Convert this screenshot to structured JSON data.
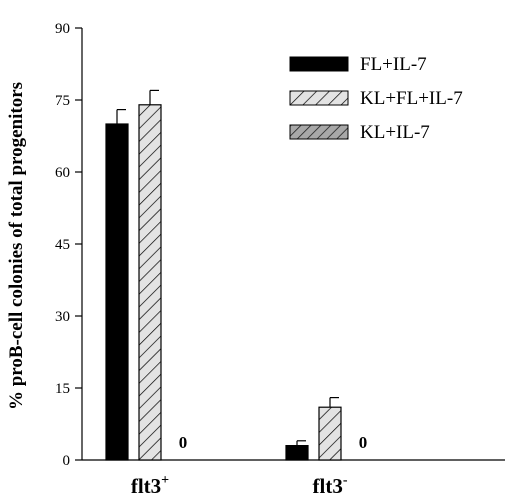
{
  "chart_data": {
    "type": "bar",
    "title": "",
    "ylabel": "% proB-cell colonies of total progenitors",
    "xlabel": "",
    "ylim": [
      0,
      90
    ],
    "yticks": [
      0,
      15,
      30,
      45,
      60,
      75,
      90
    ],
    "categories": [
      {
        "base": "flt3",
        "sup": "+"
      },
      {
        "base": "flt3",
        "sup": "-"
      }
    ],
    "series": [
      {
        "name": "FL+IL-7",
        "pattern": "solid",
        "color": "#000000",
        "values": [
          70,
          3
        ],
        "errors": [
          3,
          1
        ]
      },
      {
        "name": "KL+FL+IL-7",
        "pattern": "light-hatch",
        "color": "#d9d9d9",
        "values": [
          74,
          11
        ],
        "errors": [
          3,
          2
        ]
      },
      {
        "name": "KL+IL-7",
        "pattern": "dark-hatch",
        "color": "#9a9a9a",
        "values": [
          0,
          0
        ],
        "errors": [
          0,
          0
        ]
      }
    ],
    "bar_annotations": [
      "0",
      "0"
    ],
    "legend_position": "top-right"
  }
}
